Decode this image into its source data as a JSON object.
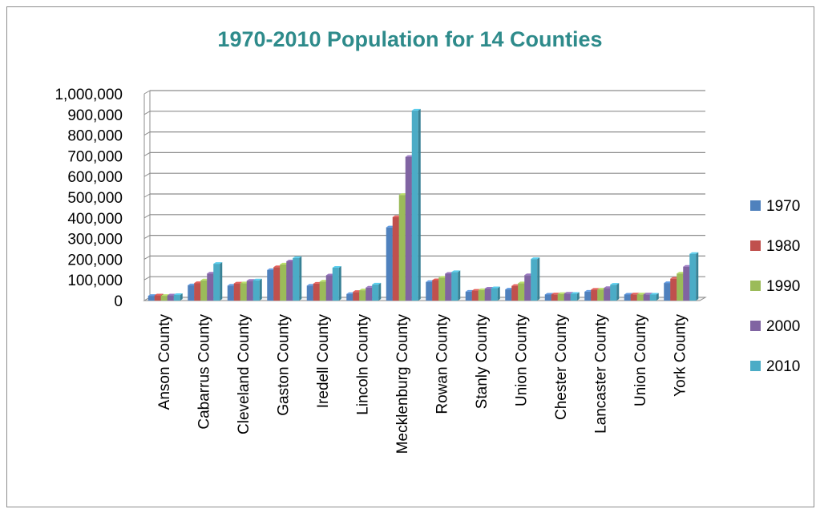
{
  "chart_data": {
    "type": "bar",
    "title": "1970-2010 Population for 14 Counties",
    "xlabel": "",
    "ylabel": "",
    "ylim": [
      0,
      1000000
    ],
    "yticks": [
      0,
      100000,
      200000,
      300000,
      400000,
      500000,
      600000,
      700000,
      800000,
      900000,
      1000000
    ],
    "ytick_labels": [
      "0",
      "100,000",
      "200,000",
      "300,000",
      "400,000",
      "500,000",
      "600,000",
      "700,000",
      "800,000",
      "900,000",
      "1,000,000"
    ],
    "grid": true,
    "legend_position": "right",
    "categories": [
      "Anson County",
      "Cabarrus County",
      "Cleveland County",
      "Gaston County",
      "Iredell County",
      "Lincoln County",
      "Mecklenburg County",
      "Rowan County",
      "Stanly County",
      "Union County",
      "Chester County",
      "Lancaster County",
      "Union County",
      "York County"
    ],
    "series": [
      {
        "name": "1970",
        "color": "#4f81bd",
        "values": [
          23000,
          74000,
          72000,
          148000,
          72000,
          32000,
          354000,
          90000,
          43000,
          54000,
          29000,
          43000,
          29000,
          85000
        ]
      },
      {
        "name": "1980",
        "color": "#c0504d",
        "values": [
          25000,
          85000,
          83000,
          162000,
          82000,
          42000,
          404000,
          99000,
          48000,
          71000,
          30000,
          53000,
          30000,
          106000
        ]
      },
      {
        "name": "1990",
        "color": "#9bbb59",
        "values": [
          23000,
          98000,
          84000,
          175000,
          92000,
          50000,
          511000,
          111000,
          51000,
          84000,
          32000,
          54000,
          30000,
          131000
        ]
      },
      {
        "name": "2000",
        "color": "#8064a2",
        "values": [
          25000,
          131000,
          96000,
          190000,
          122000,
          63000,
          695000,
          130000,
          58000,
          123000,
          34000,
          61000,
          30000,
          164000
        ]
      },
      {
        "name": "2010",
        "color": "#4bacc6",
        "values": [
          27000,
          178000,
          98000,
          206000,
          159000,
          78000,
          919000,
          138000,
          60000,
          201000,
          33000,
          77000,
          29000,
          226000
        ]
      }
    ]
  }
}
